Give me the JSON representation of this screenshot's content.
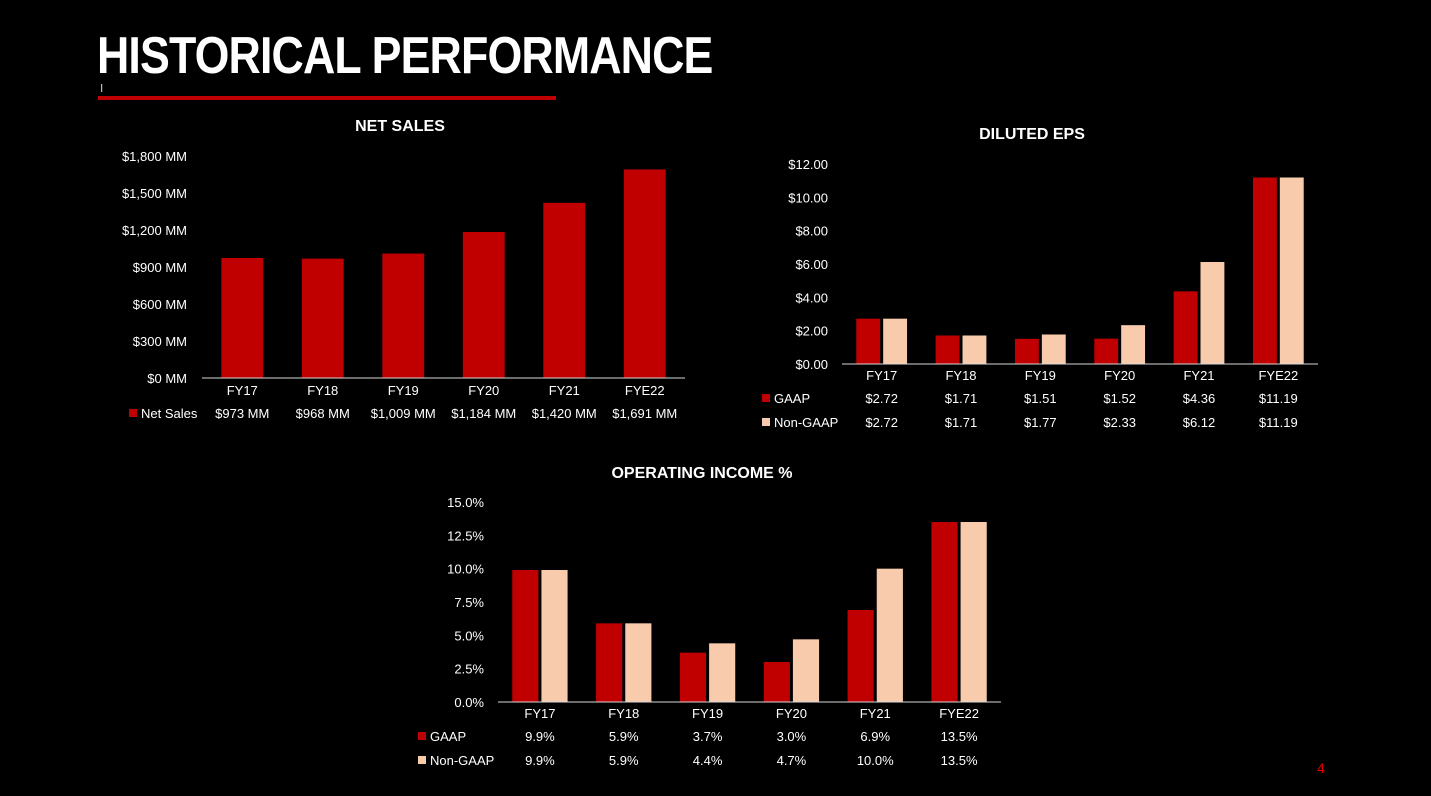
{
  "slide": {
    "title": "HISTORICAL PERFORMANCE",
    "page_number": "4",
    "accent_color": "#c00000",
    "secondary_color": "#f8cbad"
  },
  "chart_data": [
    {
      "id": "net-sales",
      "type": "bar",
      "title": "NET SALES",
      "categories": [
        "FY17",
        "FY18",
        "FY19",
        "FY20",
        "FY21",
        "FYE22"
      ],
      "series": [
        {
          "name": "Net Sales",
          "values": [
            973,
            968,
            1009,
            1184,
            1420,
            1691
          ],
          "labels": [
            "$973 MM",
            "$968 MM",
            "$1,009 MM",
            "$1,184 MM",
            "$1,420 MM",
            "$1,691 MM"
          ],
          "color": "#c00000"
        }
      ],
      "ylim": [
        0,
        1800
      ],
      "yticks": [
        0,
        300,
        600,
        900,
        1200,
        1500,
        1800
      ],
      "ytick_labels": [
        "$0 MM",
        "$300 MM",
        "$600 MM",
        "$900 MM",
        "$1,200 MM",
        "$1,500 MM",
        "$1,800 MM"
      ],
      "grid": false,
      "legend": "data-table"
    },
    {
      "id": "diluted-eps",
      "type": "bar",
      "title": "DILUTED EPS",
      "categories": [
        "FY17",
        "FY18",
        "FY19",
        "FY20",
        "FY21",
        "FYE22"
      ],
      "series": [
        {
          "name": "GAAP",
          "values": [
            2.72,
            1.71,
            1.51,
            1.52,
            4.36,
            11.19
          ],
          "labels": [
            "$2.72",
            "$1.71",
            "$1.51",
            "$1.52",
            "$4.36",
            "$11.19"
          ],
          "color": "#c00000"
        },
        {
          "name": "Non-GAAP",
          "values": [
            2.72,
            1.71,
            1.77,
            2.33,
            6.12,
            11.19
          ],
          "labels": [
            "$2.72",
            "$1.71",
            "$1.77",
            "$2.33",
            "$6.12",
            "$11.19"
          ],
          "color": "#f8cbad"
        }
      ],
      "ylim": [
        0,
        12
      ],
      "yticks": [
        0,
        2,
        4,
        6,
        8,
        10,
        12
      ],
      "ytick_labels": [
        "$0.00",
        "$2.00",
        "$4.00",
        "$6.00",
        "$8.00",
        "$10.00",
        "$12.00"
      ],
      "grid": false,
      "legend": "data-table"
    },
    {
      "id": "operating-income",
      "type": "bar",
      "title": "OPERATING INCOME %",
      "categories": [
        "FY17",
        "FY18",
        "FY19",
        "FY20",
        "FY21",
        "FYE22"
      ],
      "series": [
        {
          "name": "GAAP",
          "values": [
            9.9,
            5.9,
            3.7,
            3.0,
            6.9,
            13.5
          ],
          "labels": [
            "9.9%",
            "5.9%",
            "3.7%",
            "3.0%",
            "6.9%",
            "13.5%"
          ],
          "color": "#c00000"
        },
        {
          "name": "Non-GAAP",
          "values": [
            9.9,
            5.9,
            4.4,
            4.7,
            10.0,
            13.5
          ],
          "labels": [
            "9.9%",
            "5.9%",
            "4.4%",
            "4.7%",
            "10.0%",
            "13.5%"
          ],
          "color": "#f8cbad"
        }
      ],
      "ylim": [
        0,
        15
      ],
      "yticks": [
        0,
        2.5,
        5,
        7.5,
        10,
        12.5,
        15
      ],
      "ytick_labels": [
        "0.0%",
        "2.5%",
        "5.0%",
        "7.5%",
        "10.0%",
        "12.5%",
        "15.0%"
      ],
      "grid": false,
      "legend": "data-table"
    }
  ]
}
